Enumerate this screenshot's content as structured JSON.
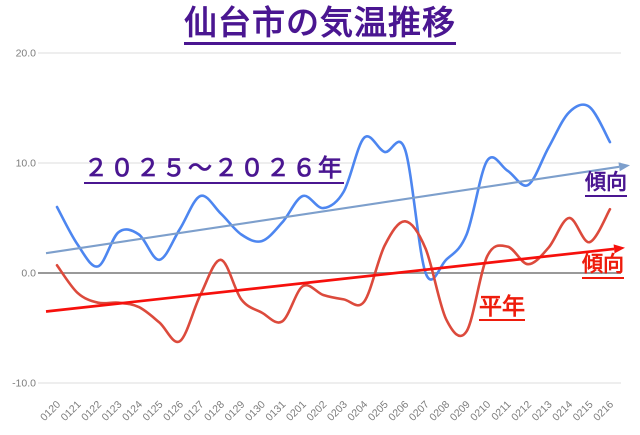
{
  "title": "仙台市の気温推移",
  "labels": {
    "series_period": "２０２５～２０２６年",
    "trend_blue": "傾向",
    "trend_red": "傾向",
    "normal": "平年"
  },
  "colors": {
    "title_purple": "#4a1691",
    "series_blue": "#4d86f0",
    "series_red": "#dc4a3c",
    "trend_blue": "#7d9fcc",
    "trend_red": "#f6100c",
    "label_red": "#ee1c0c",
    "axis_text": "#7d7d7d",
    "gridline": "#e4e4e4",
    "zero_line": "#999999"
  },
  "chart_data": {
    "type": "line",
    "title": "仙台市の気温推移",
    "xlabel": "",
    "ylabel": "",
    "grid": "horizontal",
    "legend": "none",
    "smooth": true,
    "ylim": [
      -10,
      20
    ],
    "yticks": [
      {
        "label": "20.0",
        "value": 20
      },
      {
        "label": "10.0",
        "value": 10
      },
      {
        "label": "0.0",
        "value": 0
      },
      {
        "label": "-10.0",
        "value": -10
      }
    ],
    "categories": [
      "0120",
      "0121",
      "0122",
      "0123",
      "0124",
      "0125",
      "0126",
      "0127",
      "0128",
      "0129",
      "0130",
      "0131",
      "0201",
      "0202",
      "0203",
      "0204",
      "0205",
      "0206",
      "0207",
      "0208",
      "0209",
      "0210",
      "0211",
      "0212",
      "0213",
      "0214",
      "0215",
      "0216"
    ],
    "series": [
      {
        "name": "２０２５～２０２６年",
        "color": "#4d86f0",
        "values": [
          6.0,
          2.6,
          0.6,
          3.7,
          3.5,
          1.2,
          4.0,
          7.0,
          5.4,
          3.5,
          2.9,
          4.6,
          7.0,
          5.9,
          7.4,
          12.3,
          11.0,
          11.2,
          0.0,
          1.2,
          3.5,
          10.2,
          9.3,
          8.0,
          11.4,
          14.6,
          15.1,
          11.9
        ]
      },
      {
        "name": "平年",
        "color": "#dc4a3c",
        "values": [
          0.7,
          -1.8,
          -2.7,
          -2.7,
          -3.1,
          -4.5,
          -6.2,
          -2.0,
          1.2,
          -2.4,
          -3.6,
          -4.4,
          -1.2,
          -2.0,
          -2.4,
          -2.6,
          2.5,
          4.7,
          2.2,
          -4.2,
          -5.3,
          1.5,
          2.4,
          0.8,
          2.3,
          5.0,
          2.8,
          5.8
        ]
      }
    ],
    "trendlines": [
      {
        "series": "２０２５～２０２６年",
        "label": "傾向",
        "color": "#7d9fcc",
        "start_value": 1.8,
        "end_value": 9.8,
        "arrow": true
      },
      {
        "series": "平年",
        "label": "傾向",
        "color": "#f6100c",
        "start_value": -3.5,
        "end_value": 2.3,
        "arrow": true
      }
    ]
  }
}
